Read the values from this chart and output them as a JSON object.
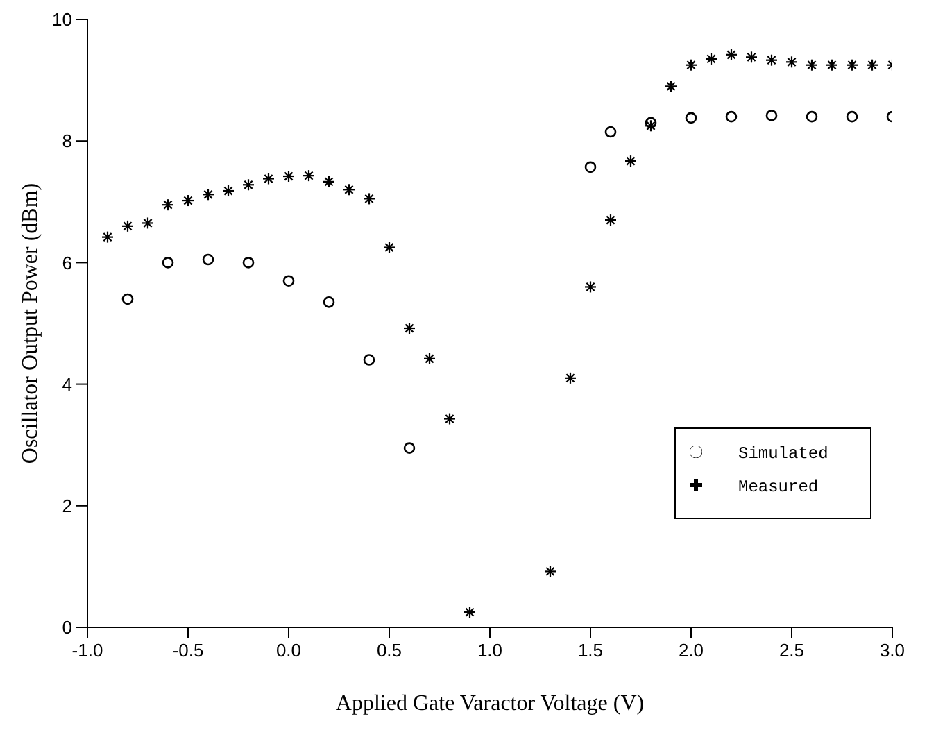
{
  "chart_data": {
    "type": "scatter",
    "xlabel": "Applied Gate Varactor Voltage (V)",
    "ylabel": "Oscillator Output Power (dBm)",
    "xlim": [
      -1,
      3
    ],
    "xticks": [
      {
        "value": -1,
        "label": "-1.0"
      },
      -0.5,
      {
        "value": 0,
        "label": "0.0"
      },
      0.5,
      {
        "value": 1,
        "label": "1.0"
      },
      1.5,
      {
        "value": 2,
        "label": "2.0"
      },
      2.5,
      {
        "value": 3,
        "label": "3.0"
      }
    ],
    "ylim": [
      0,
      10
    ],
    "yticks": [
      0,
      2,
      4,
      6,
      8,
      10
    ],
    "grid": false,
    "legend": "right",
    "series": [
      {
        "name": "Simulated",
        "color": "#000000",
        "marker": "circle",
        "x": [
          -0.8,
          -0.6,
          -0.4,
          -0.2,
          0,
          0.2,
          0.4,
          0.6,
          1.5,
          1.6,
          1.8,
          2.0,
          2.2,
          2.4,
          2.6,
          2.8,
          3.0
        ],
        "values": [
          5.4,
          6.0,
          6.05,
          6.0,
          5.7,
          5.35,
          4.4,
          2.95,
          7.57,
          8.15,
          8.3,
          8.38,
          8.4,
          8.42,
          8.4,
          8.4,
          8.4
        ]
      },
      {
        "name": "Measured",
        "color": "#000000",
        "marker": "cross",
        "x": [
          -0.9,
          -0.8,
          -0.7,
          -0.6,
          -0.5,
          -0.4,
          -0.3,
          -0.2,
          -0.1,
          0,
          0.1,
          0.2,
          0.3,
          0.4,
          0.5,
          0.6,
          0.7,
          0.8,
          0.9,
          1.3,
          1.4,
          1.5,
          1.6,
          1.7,
          1.8,
          1.9,
          2.0,
          2.1,
          2.2,
          2.3,
          2.4,
          2.5,
          2.6,
          2.7,
          2.8,
          2.9,
          3.0
        ],
        "values": [
          6.42,
          6.6,
          6.65,
          6.95,
          7.02,
          7.12,
          7.18,
          7.28,
          7.38,
          7.42,
          7.43,
          7.33,
          7.2,
          7.05,
          6.25,
          4.92,
          4.42,
          3.43,
          0.25,
          0.92,
          4.1,
          5.6,
          6.7,
          7.67,
          8.25,
          8.9,
          9.25,
          9.35,
          9.42,
          9.38,
          9.33,
          9.3,
          9.25,
          9.25,
          9.25,
          9.25,
          9.25
        ]
      }
    ]
  }
}
